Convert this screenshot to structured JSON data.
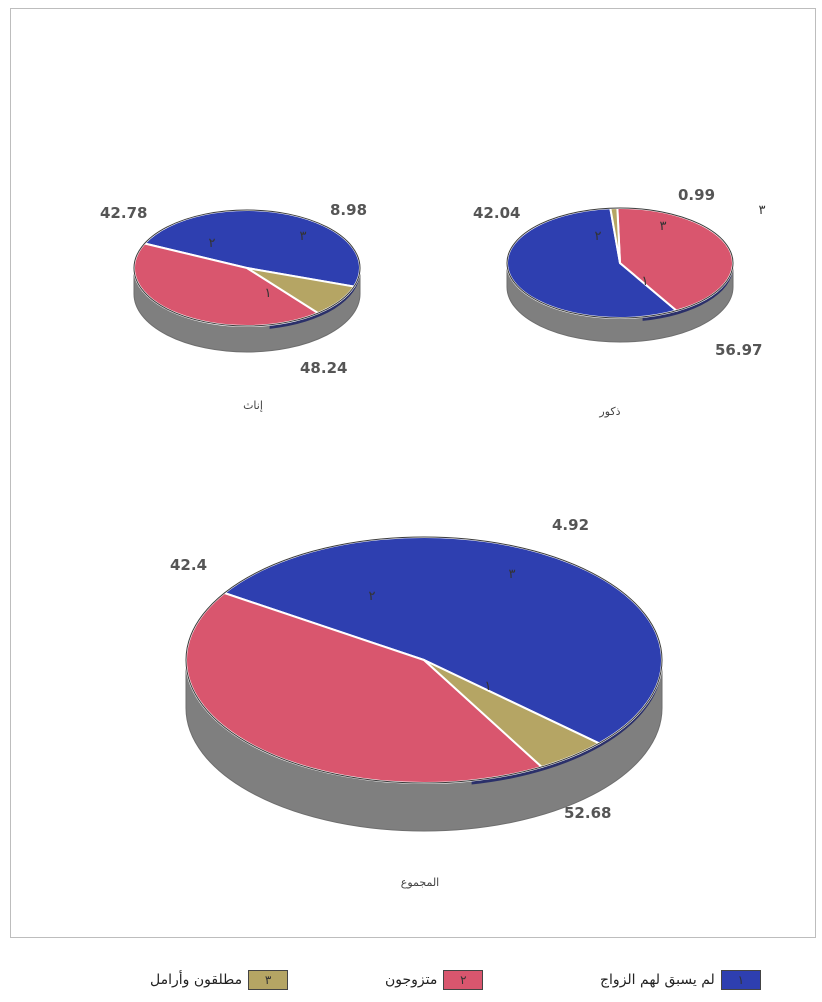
{
  "chart_data": [
    {
      "type": "pie",
      "title": "ذكور",
      "slices": [
        {
          "marker": "١",
          "value": 56.97
        },
        {
          "marker": "٢",
          "value": 42.04
        },
        {
          "marker": "٣",
          "value": 0.99
        }
      ],
      "corner_mark": "٣"
    },
    {
      "type": "pie",
      "title": "إناث",
      "slices": [
        {
          "marker": "١",
          "value": 48.24
        },
        {
          "marker": "٢",
          "value": 42.78
        },
        {
          "marker": "٣",
          "value": 8.98
        }
      ]
    },
    {
      "type": "pie",
      "title": "المجموع",
      "slices": [
        {
          "marker": "١",
          "value": 52.68
        },
        {
          "marker": "٢",
          "value": 42.4
        },
        {
          "marker": "٣",
          "value": 4.92
        }
      ]
    }
  ],
  "legend": [
    {
      "marker": "١",
      "label": "لم يسبق لهم الزواج",
      "color": "#2e3fb0"
    },
    {
      "marker": "٢",
      "label": "متزوجون",
      "color": "#d9566e"
    },
    {
      "marker": "٣",
      "label": "مطلقون وأرامل",
      "color": "#b5a564"
    }
  ],
  "colors": {
    "side": "#7f7f7f",
    "edge": "#6e6e6e",
    "outline": "#1c2266"
  }
}
